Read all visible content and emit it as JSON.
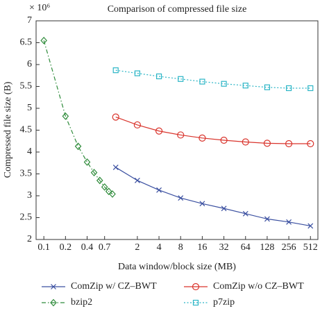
{
  "chart_data": {
    "type": "line",
    "title": "Comparison of compressed file size",
    "x_label": "Data window/block size (MB)",
    "y_label": "Compressed file size (B)",
    "y_multiplier": "× 10⁶",
    "x_scale": "log",
    "xlim": [
      0.078,
      650
    ],
    "xticks": [
      0.1,
      0.2,
      0.4,
      0.7,
      2,
      4,
      8,
      16,
      32,
      64,
      128,
      256,
      512
    ],
    "ylim": [
      2,
      7
    ],
    "yticks": [
      2,
      2.5,
      3,
      3.5,
      4,
      4.5,
      5,
      5.5,
      6,
      6.5,
      7
    ],
    "series": [
      {
        "name": "ComZip w/ CZ–BWT",
        "color": "#3a4fa0",
        "marker": "x",
        "linestyle": "solid",
        "x": [
          1,
          2,
          4,
          8,
          16,
          32,
          64,
          128,
          256,
          512
        ],
        "values": [
          3.65,
          3.35,
          3.13,
          2.95,
          2.82,
          2.71,
          2.59,
          2.47,
          2.4,
          2.31
        ]
      },
      {
        "name": "ComZip w/o CZ–BWT",
        "color": "#d9332b",
        "marker": "circle",
        "linestyle": "solid",
        "x": [
          1,
          2,
          4,
          8,
          16,
          32,
          64,
          128,
          256,
          512
        ],
        "values": [
          4.8,
          4.62,
          4.48,
          4.39,
          4.32,
          4.27,
          4.23,
          4.2,
          4.19,
          4.19
        ]
      },
      {
        "name": "bzip2",
        "color": "#2e8b3a",
        "marker": "diamond",
        "linestyle": "dashdot",
        "x": [
          0.1,
          0.2,
          0.3,
          0.4,
          0.5,
          0.6,
          0.7,
          0.8,
          0.9
        ],
        "values": [
          6.55,
          4.82,
          4.13,
          3.77,
          3.53,
          3.35,
          3.2,
          3.1,
          3.04
        ]
      },
      {
        "name": "p7zip",
        "color": "#2bb5c6",
        "marker": "square",
        "linestyle": "dotted",
        "x": [
          1,
          2,
          4,
          8,
          16,
          32,
          64,
          128,
          256,
          512
        ],
        "values": [
          5.87,
          5.8,
          5.73,
          5.67,
          5.61,
          5.56,
          5.52,
          5.48,
          5.46,
          5.46
        ]
      }
    ]
  }
}
